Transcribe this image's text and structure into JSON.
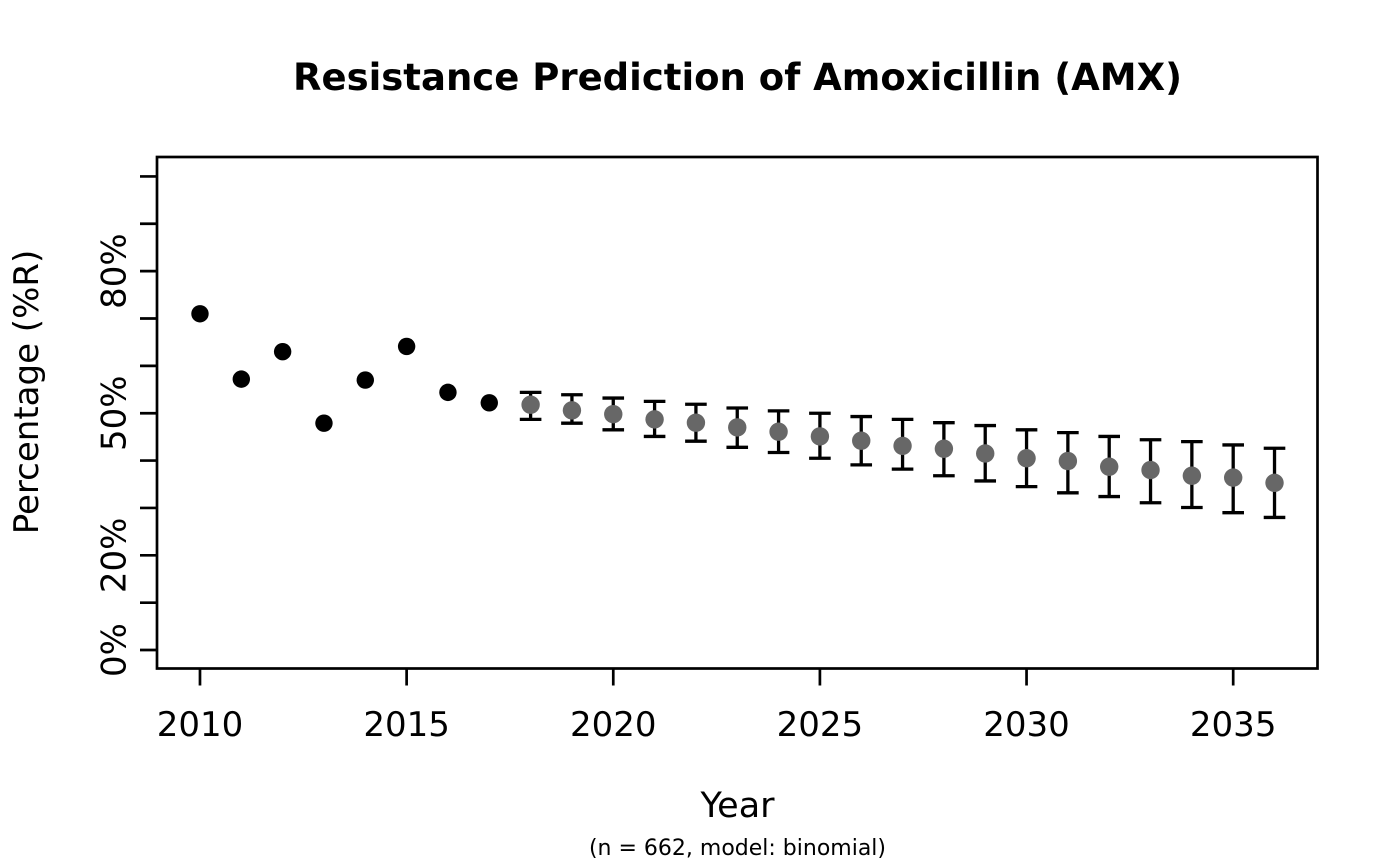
{
  "chart_data": {
    "type": "scatter",
    "title": "Resistance Prediction of Amoxicillin (AMX)",
    "xlabel": "Year",
    "ylabel": "Percentage (%R)",
    "subtitle": "(n = 662, model: binomial)",
    "grid": false,
    "legend": null,
    "xlim": [
      2008.96,
      2037.04
    ],
    "ylim": [
      -3.9,
      104.1
    ],
    "x_ticks": [
      2010,
      2015,
      2020,
      2025,
      2030,
      2035
    ],
    "y_ticks": [
      0,
      10,
      20,
      30,
      40,
      50,
      60,
      70,
      80,
      90,
      100
    ],
    "y_tick_labels": [
      {
        "value": 0,
        "label": "0%"
      },
      {
        "value": 20,
        "label": "20%"
      },
      {
        "value": 50,
        "label": "50%"
      },
      {
        "value": 80,
        "label": "80%"
      }
    ],
    "colors": {
      "observed": "#000000",
      "predicted": "#676767",
      "errorbar": "#000000",
      "axis": "#000000"
    },
    "series": [
      {
        "name": "observed",
        "style": "points",
        "color": "#000000",
        "x": [
          2010,
          2011,
          2012,
          2013,
          2014,
          2015,
          2016,
          2017
        ],
        "y": [
          71.0,
          57.2,
          63.0,
          47.9,
          57.0,
          64.1,
          54.4,
          52.2
        ]
      },
      {
        "name": "predicted",
        "style": "points-with-errorbars",
        "color": "#676767",
        "errorbar_color": "#000000",
        "x": [
          2018,
          2019,
          2020,
          2021,
          2022,
          2023,
          2024,
          2025,
          2026,
          2027,
          2028,
          2029,
          2030,
          2031,
          2032,
          2033,
          2034,
          2035,
          2036
        ],
        "y": [
          51.8,
          50.6,
          49.8,
          48.7,
          48.0,
          47.0,
          46.1,
          45.1,
          44.2,
          43.1,
          42.5,
          41.5,
          40.5,
          39.9,
          38.7,
          38.0,
          36.8,
          36.4,
          35.3
        ],
        "y_upper": [
          54.4,
          53.9,
          53.2,
          52.5,
          51.9,
          51.1,
          50.5,
          50.0,
          49.3,
          48.7,
          48.0,
          47.4,
          46.5,
          45.9,
          45.1,
          44.4,
          44.0,
          43.3,
          42.6
        ],
        "y_lower": [
          48.7,
          47.9,
          46.5,
          45.1,
          44.1,
          42.8,
          41.7,
          40.5,
          39.1,
          38.2,
          36.8,
          35.7,
          34.5,
          33.2,
          32.4,
          31.1,
          30.1,
          29.0,
          28.0
        ]
      }
    ]
  }
}
